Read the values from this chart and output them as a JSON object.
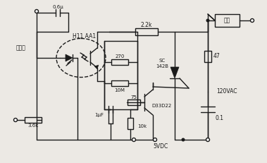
{
  "bg_color": "#ece9e4",
  "line_color": "#1a1a1a",
  "line_width": 1.0,
  "labels": {
    "cap_top": "0.6μ",
    "telephone": "电话线",
    "optocoupler": "H11 AA1",
    "res_2k2": "2.2k",
    "res_270": "270",
    "res_10M": "10M",
    "cap_1uF": "1μF",
    "res_10k": "10k",
    "res_75": "75",
    "transistor": "D33D22",
    "scr_label": "SC\n142B",
    "res_47": "47",
    "voltage_ac": "120VAC",
    "cap_01": "0.1",
    "voltage_dc": "5VDC",
    "load_box": "负载",
    "res_3k6": "3.6k"
  }
}
